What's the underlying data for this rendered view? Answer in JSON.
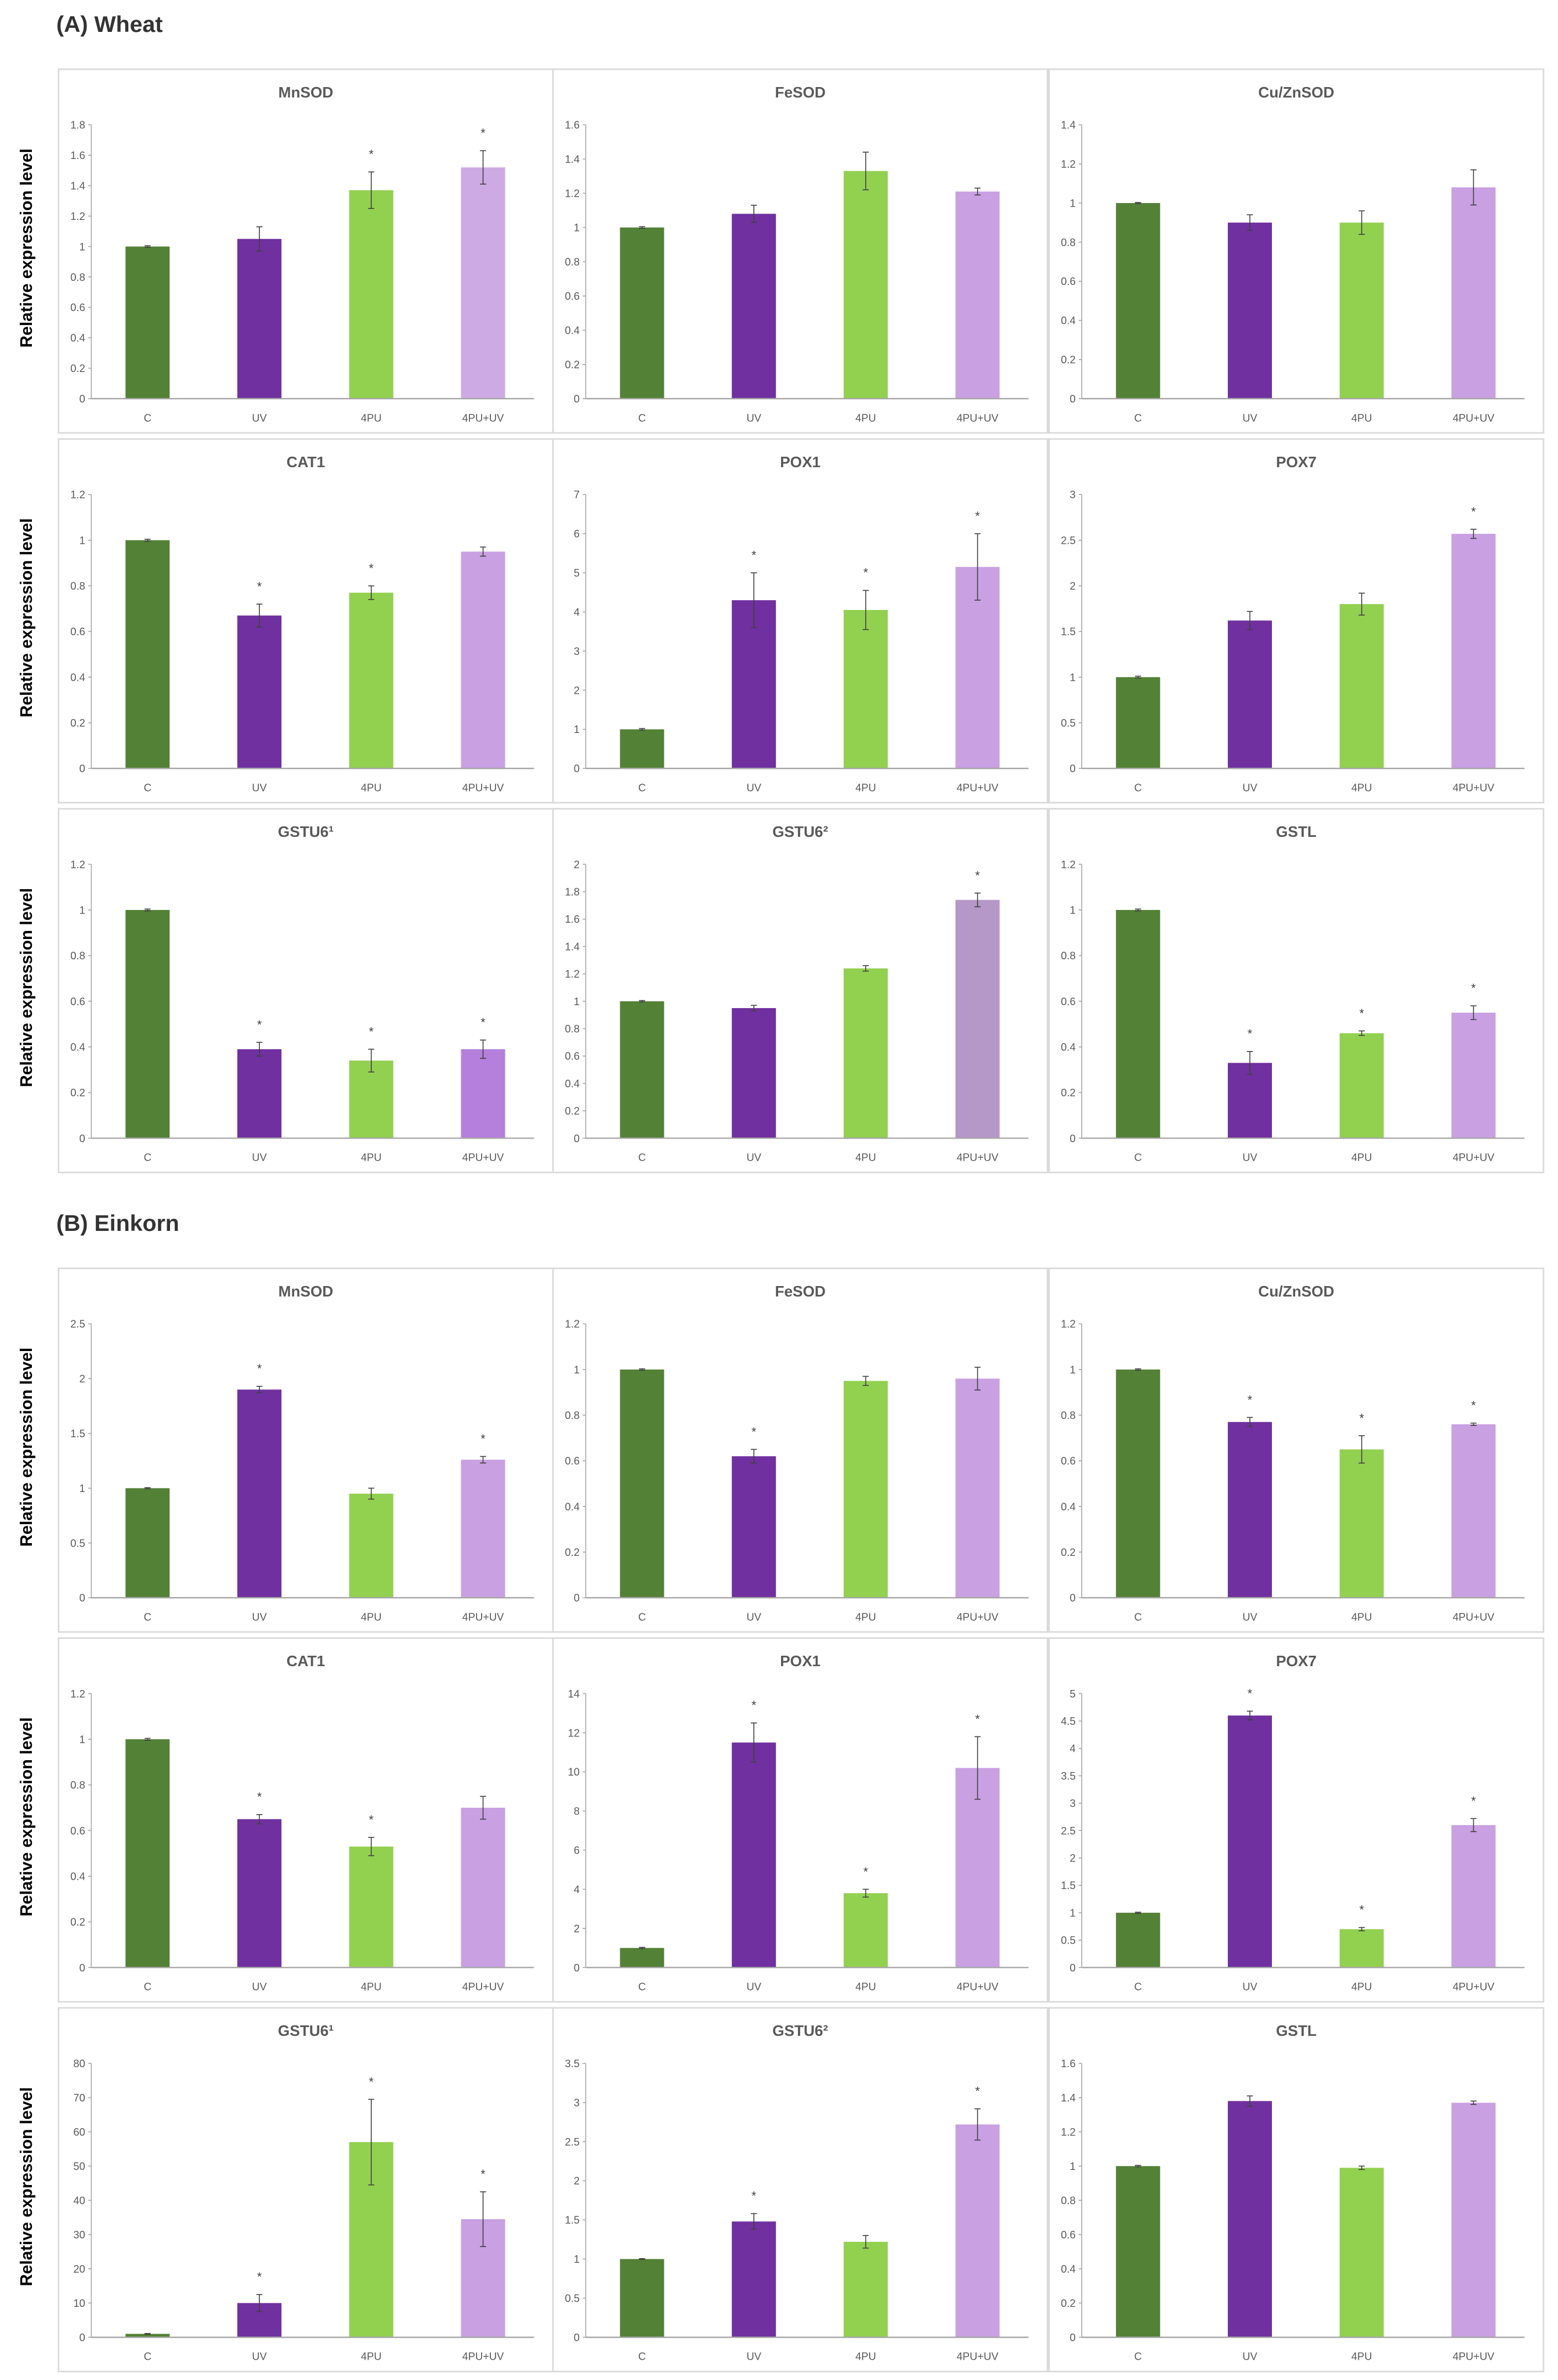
{
  "y_axis_label": "Relative expression level",
  "colors": {
    "C": "#538135",
    "UV": "#7030a0",
    "4PU": "#92d050",
    "4PU+UV": "#c9a0e2",
    "axis": "#a6a6a6",
    "text": "#595959"
  },
  "chart_data": [
    {
      "section": "(A) Wheat",
      "type": "bar",
      "categories": [
        "C",
        "UV",
        "4PU",
        "4PU+UV"
      ],
      "panels": [
        {
          "title": "MnSOD",
          "ylim": [
            0,
            1.8
          ],
          "step": 0.2,
          "values": [
            1.0,
            1.05,
            1.37,
            1.52
          ],
          "errors": [
            0.005,
            0.08,
            0.12,
            0.11
          ],
          "significant": [
            false,
            false,
            true,
            true
          ],
          "last_color": "#cdaae4"
        },
        {
          "title": "FeSOD",
          "ylim": [
            0,
            1.6
          ],
          "step": 0.2,
          "values": [
            1.0,
            1.08,
            1.33,
            1.21
          ],
          "errors": [
            0.005,
            0.05,
            0.11,
            0.02
          ],
          "significant": [
            false,
            false,
            false,
            false
          ]
        },
        {
          "title": "Cu/ZnSOD",
          "ylim": [
            0,
            1.4
          ],
          "step": 0.2,
          "values": [
            1.0,
            0.9,
            0.9,
            1.08
          ],
          "errors": [
            0.003,
            0.04,
            0.06,
            0.09
          ],
          "significant": [
            false,
            false,
            false,
            false
          ]
        },
        {
          "title": "CAT1",
          "ylim": [
            0,
            1.2
          ],
          "step": 0.2,
          "values": [
            1.0,
            0.67,
            0.77,
            0.95
          ],
          "errors": [
            0.004,
            0.05,
            0.03,
            0.02
          ],
          "significant": [
            false,
            true,
            true,
            false
          ]
        },
        {
          "title": "POX1",
          "ylim": [
            0,
            7
          ],
          "step": 1,
          "values": [
            1.0,
            4.3,
            4.05,
            5.15
          ],
          "errors": [
            0.02,
            0.7,
            0.5,
            0.85
          ],
          "significant": [
            false,
            true,
            true,
            true
          ]
        },
        {
          "title": "POX7",
          "ylim": [
            0,
            3
          ],
          "step": 0.5,
          "values": [
            1.0,
            1.62,
            1.8,
            2.57
          ],
          "errors": [
            0.01,
            0.1,
            0.12,
            0.05
          ],
          "significant": [
            false,
            false,
            false,
            true
          ]
        },
        {
          "title": "GSTU6¹",
          "ylim": [
            0,
            1.2
          ],
          "step": 0.2,
          "values": [
            1.0,
            0.39,
            0.34,
            0.39
          ],
          "errors": [
            0.004,
            0.03,
            0.05,
            0.04
          ],
          "significant": [
            false,
            true,
            true,
            true
          ],
          "last_color": "#b57fdc"
        },
        {
          "title": "GSTU6²",
          "ylim": [
            0,
            2
          ],
          "step": 0.2,
          "values": [
            1.0,
            0.95,
            1.24,
            1.74
          ],
          "errors": [
            0.005,
            0.02,
            0.02,
            0.05
          ],
          "significant": [
            false,
            false,
            false,
            true
          ],
          "last_color": "#b597c8"
        },
        {
          "title": "GSTL",
          "ylim": [
            0,
            1.2
          ],
          "step": 0.2,
          "values": [
            1.0,
            0.33,
            0.46,
            0.55
          ],
          "errors": [
            0.004,
            0.05,
            0.01,
            0.03
          ],
          "significant": [
            false,
            true,
            true,
            true
          ]
        }
      ]
    },
    {
      "section": "(B) Einkorn",
      "type": "bar",
      "categories": [
        "C",
        "UV",
        "4PU",
        "4PU+UV"
      ],
      "panels": [
        {
          "title": "MnSOD",
          "ylim": [
            0,
            2.5
          ],
          "step": 0.5,
          "values": [
            1.0,
            1.9,
            0.95,
            1.26
          ],
          "errors": [
            0.005,
            0.03,
            0.05,
            0.03
          ],
          "significant": [
            false,
            true,
            false,
            true
          ]
        },
        {
          "title": "FeSOD",
          "ylim": [
            0,
            1.2
          ],
          "step": 0.2,
          "values": [
            1.0,
            0.62,
            0.95,
            0.96
          ],
          "errors": [
            0.003,
            0.03,
            0.02,
            0.05
          ],
          "significant": [
            false,
            true,
            false,
            false
          ]
        },
        {
          "title": "Cu/ZnSOD",
          "ylim": [
            0,
            1.2
          ],
          "step": 0.2,
          "values": [
            1.0,
            0.77,
            0.65,
            0.76
          ],
          "errors": [
            0.003,
            0.02,
            0.06,
            0.005
          ],
          "significant": [
            false,
            true,
            true,
            true
          ]
        },
        {
          "title": "CAT1",
          "ylim": [
            0,
            1.2
          ],
          "step": 0.2,
          "values": [
            1.0,
            0.65,
            0.53,
            0.7
          ],
          "errors": [
            0.004,
            0.02,
            0.04,
            0.05
          ],
          "significant": [
            false,
            true,
            true,
            false
          ]
        },
        {
          "title": "POX1",
          "ylim": [
            0,
            14
          ],
          "step": 2,
          "values": [
            1.0,
            11.5,
            3.8,
            10.2
          ],
          "errors": [
            0.03,
            1.0,
            0.2,
            1.6
          ],
          "significant": [
            false,
            true,
            true,
            true
          ]
        },
        {
          "title": "POX7",
          "ylim": [
            0,
            5
          ],
          "step": 0.5,
          "values": [
            1.0,
            4.6,
            0.7,
            2.6
          ],
          "errors": [
            0.01,
            0.08,
            0.03,
            0.12
          ],
          "significant": [
            false,
            true,
            true,
            true
          ]
        },
        {
          "title": "GSTU6¹",
          "ylim": [
            0,
            80
          ],
          "step": 10,
          "values": [
            1.0,
            10,
            57,
            34.5
          ],
          "errors": [
            0.1,
            2.5,
            12.5,
            8
          ],
          "significant": [
            false,
            true,
            true,
            true
          ]
        },
        {
          "title": "GSTU6²",
          "ylim": [
            0,
            3.5
          ],
          "step": 0.5,
          "values": [
            1.0,
            1.48,
            1.22,
            2.72
          ],
          "errors": [
            0.005,
            0.1,
            0.08,
            0.2
          ],
          "significant": [
            false,
            true,
            false,
            true
          ]
        },
        {
          "title": "GSTL",
          "ylim": [
            0,
            1.6
          ],
          "step": 0.2,
          "values": [
            1.0,
            1.38,
            0.99,
            1.37
          ],
          "errors": [
            0.004,
            0.03,
            0.01,
            0.01
          ],
          "significant": [
            false,
            false,
            false,
            false
          ]
        }
      ]
    }
  ]
}
